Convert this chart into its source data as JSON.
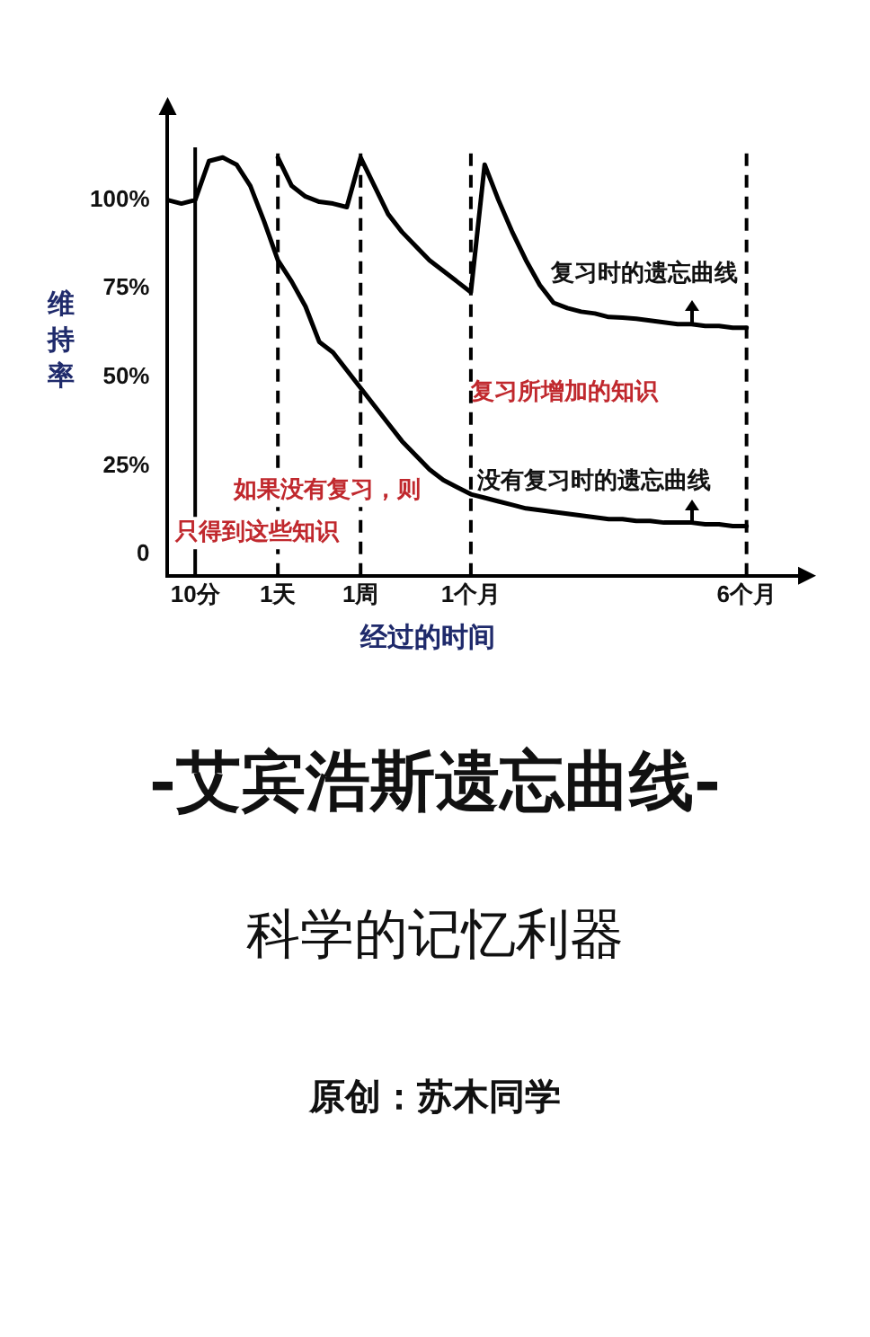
{
  "chart_data": {
    "type": "line",
    "title": "-艾宾浩斯遗忘曲线-",
    "subtitle": "科学的记忆利器",
    "xlabel": "经过的时间",
    "ylabel": "维持率",
    "categories": [
      null,
      null,
      "10分",
      null,
      null,
      null,
      null,
      null,
      "1天",
      null,
      null,
      null,
      null,
      null,
      "1周",
      null,
      null,
      null,
      null,
      null,
      null,
      null,
      "1个月",
      null,
      null,
      null,
      null,
      null,
      null,
      null,
      null,
      null,
      null,
      null,
      null,
      null,
      null,
      null,
      null,
      null,
      null,
      null,
      "6个月",
      null,
      null,
      null,
      null
    ],
    "ylim": [
      -6,
      125
    ],
    "yticks": [
      0,
      {
        "value": 25,
        "label": "25%"
      },
      {
        "value": 50,
        "label": "50%"
      },
      {
        "value": 75,
        "label": "75%"
      },
      {
        "value": 100,
        "label": "100%"
      }
    ],
    "grid": false,
    "series": [
      {
        "color": "#000000",
        "values": [
          100,
          99,
          100,
          111,
          112,
          110,
          104,
          94,
          83,
          77,
          70,
          60,
          57,
          52,
          47,
          42,
          37,
          32,
          28,
          24,
          21,
          19,
          17,
          16,
          15,
          14,
          13,
          12.5,
          12,
          11.5,
          11,
          10.5,
          10,
          10,
          9.5,
          9.5,
          9,
          9,
          9,
          8.5,
          8.5,
          8,
          8,
          null,
          null,
          null,
          null
        ]
      },
      {
        "color": "#000000",
        "values": [
          null,
          null,
          null,
          null,
          null,
          null,
          null,
          null,
          112,
          104,
          101,
          99.5,
          99,
          98,
          112,
          104,
          96,
          91,
          87,
          83,
          80,
          77,
          74,
          110,
          100,
          91,
          83,
          76,
          71,
          69.5,
          68.5,
          68,
          67,
          66.8,
          66.5,
          66,
          65.5,
          65,
          65,
          64.5,
          64.5,
          64,
          64,
          null,
          null,
          null,
          null
        ]
      }
    ],
    "ref_lines": [
      {
        "axis": "x",
        "value": "10分",
        "line_style": "solid",
        "color": "#000000"
      },
      {
        "axis": "x",
        "value": "1天",
        "line_style": "dashed",
        "color": "#000000"
      },
      {
        "axis": "x",
        "value": "1周",
        "line_style": "dashed",
        "color": "#000000"
      },
      {
        "axis": "x",
        "value": "1个月",
        "line_style": "dashed",
        "color": "#000000"
      },
      {
        "axis": "x",
        "value": "6个月",
        "line_style": "dashed",
        "color": "#000000"
      }
    ],
    "annotations": [
      "复习时的遗忘曲线",
      "复习所增加的知识",
      "没有复习时的遗忘曲线",
      "如果没有复习，则只得到这些知识",
      "原创：苏木同学"
    ]
  }
}
